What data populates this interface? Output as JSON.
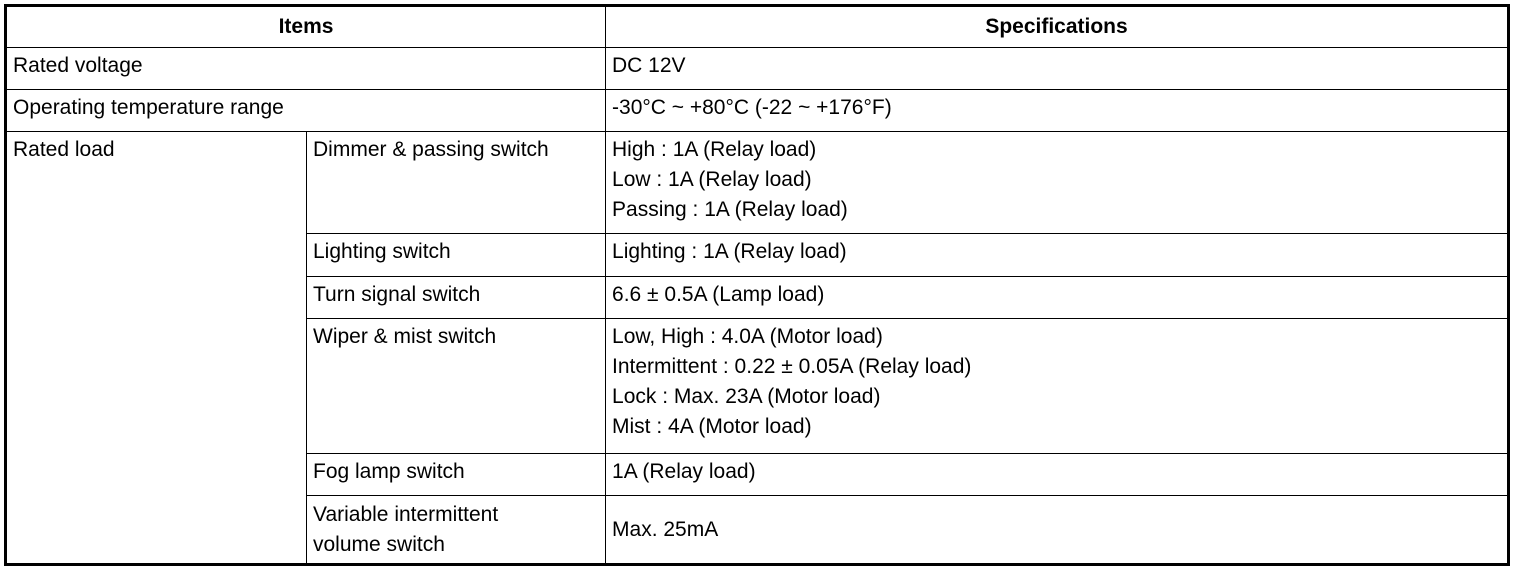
{
  "headers": {
    "items": "Items",
    "specifications": "Specifications"
  },
  "rows": {
    "rated_voltage": {
      "item": "Rated voltage",
      "spec": "DC 12V"
    },
    "temperature": {
      "item": "Operating temperature range",
      "spec": "-30°C ~ +80°C (-22 ~ +176°F)"
    },
    "rated_load": {
      "item": "Rated load",
      "sub": [
        {
          "name": "Dimmer & passing switch",
          "specs": [
            "High : 1A (Relay load)",
            "Low : 1A (Relay load)",
            "Passing : 1A (Relay load)"
          ]
        },
        {
          "name": "Lighting switch",
          "specs": [
            "Lighting : 1A (Relay load)"
          ]
        },
        {
          "name": "Turn signal switch",
          "specs": [
            "6.6 ± 0.5A (Lamp load)"
          ]
        },
        {
          "name": "Wiper & mist switch",
          "specs": [
            "Low, High : 4.0A (Motor load)",
            "Intermittent : 0.22 ± 0.05A (Relay load)",
            "Lock : Max. 23A (Motor load)",
            "Mist : 4A (Motor load)"
          ]
        },
        {
          "name": "Fog lamp switch",
          "specs": [
            "1A (Relay load)"
          ]
        },
        {
          "name": "Variable intermittent volume switch",
          "specs": [
            "Max. 25mA"
          ]
        }
      ]
    }
  }
}
